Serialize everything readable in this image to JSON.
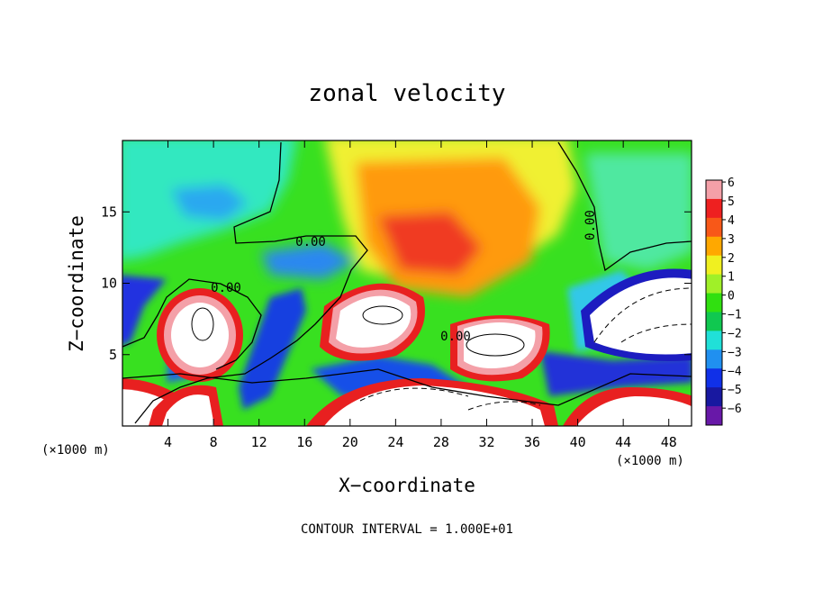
{
  "chart_data": {
    "type": "heatmap",
    "title": "zonal velocity",
    "xlabel": "X−coordinate",
    "ylabel": "Z−coordinate",
    "x_unit_left": "(×1000 m)",
    "x_unit_right": "(×1000 m)",
    "xlim": [
      0,
      50
    ],
    "ylim": [
      0,
      20
    ],
    "xticks": [
      4,
      8,
      12,
      16,
      20,
      24,
      28,
      32,
      36,
      40,
      44,
      48
    ],
    "yticks": [
      5,
      10,
      15
    ],
    "colorbar": {
      "ticks": [
        6,
        5,
        4,
        3,
        2,
        1,
        0,
        -1,
        -2,
        -3,
        -4,
        -5,
        -6
      ],
      "colors": [
        "#f4a0a8",
        "#ee2020",
        "#f85818",
        "#ffa800",
        "#f0f020",
        "#a0f028",
        "#30e010",
        "#10c850",
        "#20e0d8",
        "#2090f0",
        "#1030e8",
        "#1818a0",
        "#6818a8"
      ]
    },
    "contour_labels": [
      "0.00",
      "0.00",
      "0.00",
      "0.00"
    ],
    "contour_interval_text": "CONTOUR INTERVAL = 1.000E+01"
  }
}
